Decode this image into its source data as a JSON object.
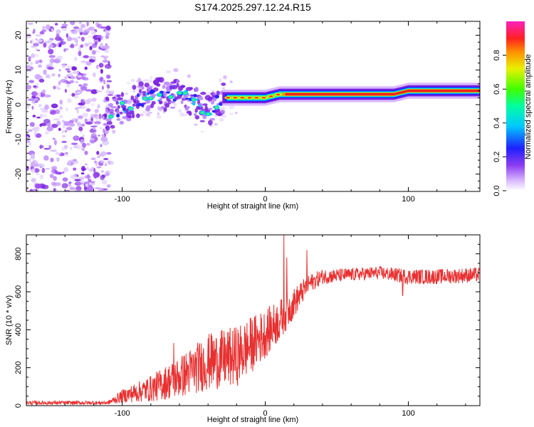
{
  "title": "S174.2025.297.12.24.R15",
  "chart_data": [
    {
      "type": "heatmap",
      "name": "spectrogram",
      "xlabel": "Height of straight line (km)",
      "ylabel": "Frequency (Hz)",
      "xlim": [
        -167,
        150
      ],
      "ylim": [
        -25,
        24
      ],
      "xticks": [
        -100,
        0,
        100
      ],
      "xtick_labels": [
        "-100",
        "0",
        "100"
      ],
      "yticks": [
        20,
        10,
        0,
        -10,
        -20
      ],
      "ytick_labels": [
        "20",
        "10",
        "0",
        "-10",
        "-20"
      ],
      "noise_region_x": [
        -167,
        -108
      ],
      "signal_start_x": -112,
      "trace": {
        "x": [
          -112,
          -100,
          -90,
          -80,
          -70,
          -60,
          -50,
          -40,
          -30,
          -20,
          -10,
          0,
          10,
          20,
          40,
          60,
          80,
          90,
          100,
          110,
          130,
          150
        ],
        "freq": [
          -3,
          -1,
          1,
          3,
          3,
          3,
          1,
          -2,
          2,
          2,
          2,
          2,
          3,
          3,
          3,
          3,
          3,
          3,
          4,
          4,
          4,
          4
        ]
      },
      "colorbar": {
        "label": "Normalized spectral amplitude",
        "ticks": [
          0.0,
          0.2,
          0.4,
          0.6,
          0.8
        ],
        "tick_labels": [
          "0.0",
          "0.2",
          "0.4",
          "0.6",
          "0.8"
        ],
        "range": [
          0,
          1
        ]
      }
    },
    {
      "type": "line",
      "name": "snr",
      "xlabel": "Height of straight line (km)",
      "ylabel": "SNR (10 * v/v)",
      "xlim": [
        -167,
        150
      ],
      "ylim": [
        0,
        900
      ],
      "xticks": [
        -100,
        0,
        100
      ],
      "xtick_labels": [
        "-100",
        "0",
        "100"
      ],
      "yticks": [
        0,
        200,
        400,
        600,
        800
      ],
      "ytick_labels": [
        "0",
        "200",
        "400",
        "600",
        "800"
      ],
      "line_color": "#e83030",
      "envelope": {
        "x": [
          -167,
          -110,
          -100,
          -80,
          -60,
          -40,
          -20,
          -10,
          0,
          10,
          20,
          30,
          40,
          60,
          80,
          100,
          120,
          150
        ],
        "mean": [
          15,
          15,
          50,
          90,
          150,
          230,
          260,
          320,
          380,
          450,
          540,
          640,
          680,
          690,
          700,
          680,
          680,
          690
        ],
        "jitter": [
          10,
          10,
          35,
          70,
          110,
          150,
          160,
          150,
          130,
          110,
          80,
          50,
          40,
          35,
          35,
          40,
          40,
          40
        ]
      },
      "spikes": [
        {
          "x": 13,
          "y": 900
        },
        {
          "x": 15,
          "y": 780
        },
        {
          "x": 29,
          "y": 820
        },
        {
          "x": -64,
          "y": 330
        },
        {
          "x": -38,
          "y": 370
        },
        {
          "x": 96,
          "y": 580
        }
      ]
    }
  ]
}
